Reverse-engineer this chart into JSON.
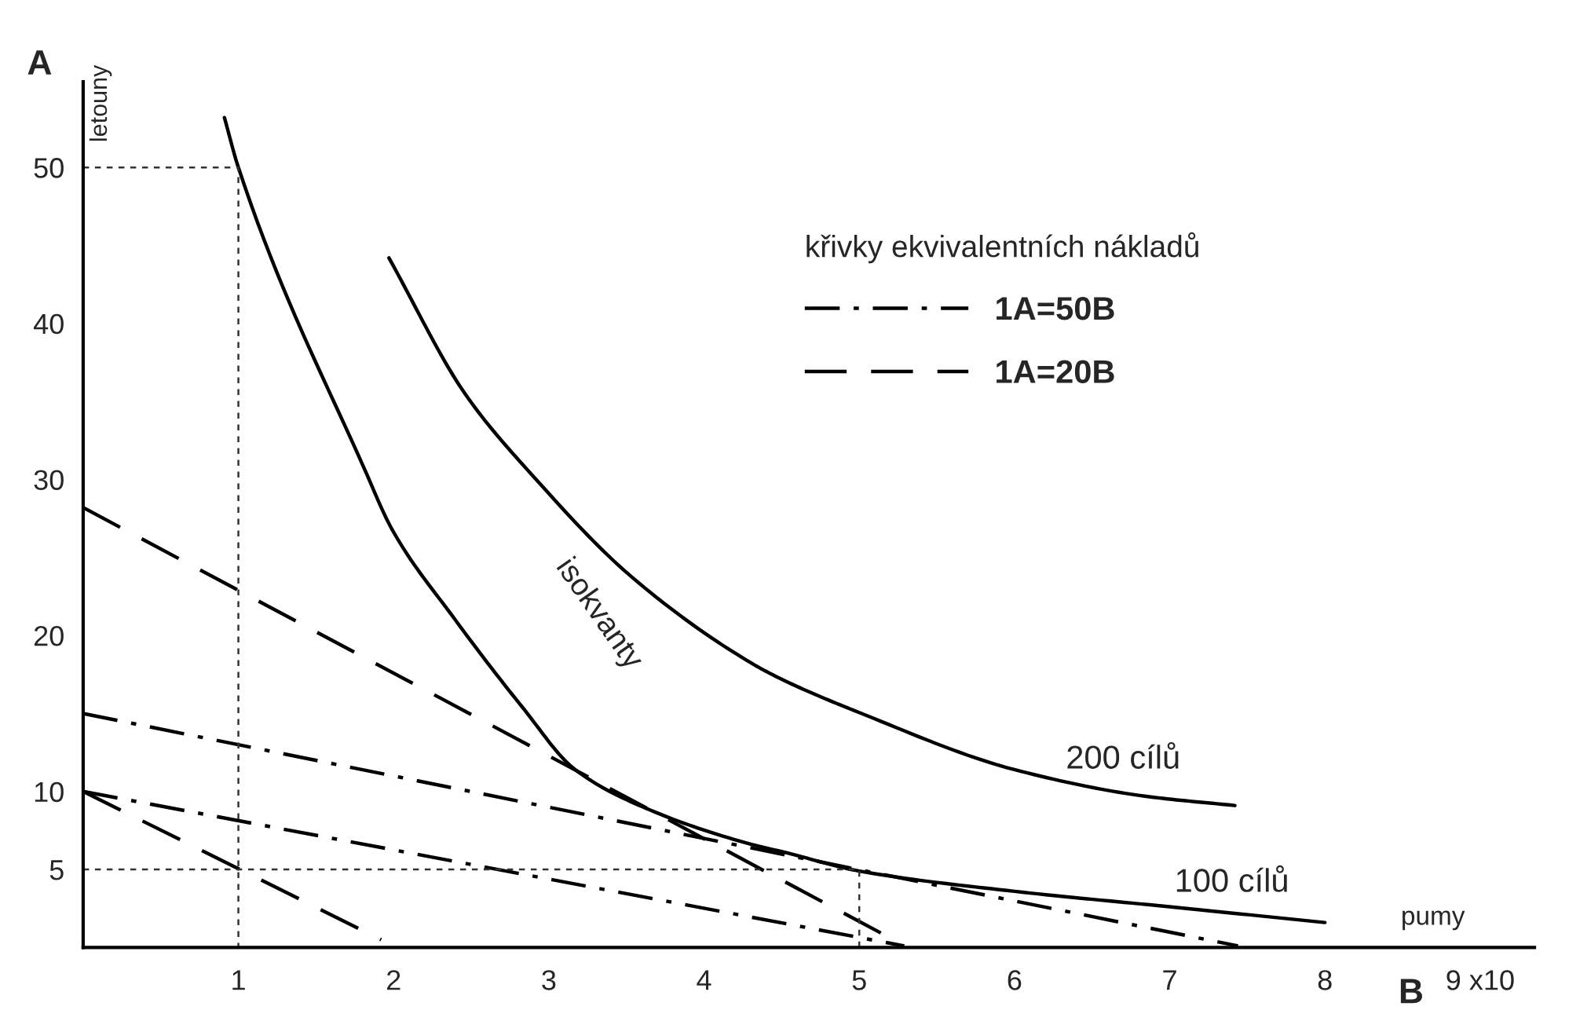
{
  "chart_data": {
    "type": "line",
    "xlabel": "B",
    "ylabel": "A",
    "legend_title": "křivky ekvivalentních nákladů",
    "xlim": [
      0,
      9.35
    ],
    "ylim": [
      0,
      55.5
    ],
    "xticks": [
      1,
      2,
      3,
      4,
      5,
      6,
      7,
      8,
      {
        "value": 9,
        "label": "9 x10"
      }
    ],
    "yticks": [
      5,
      10,
      20,
      30,
      40,
      50
    ],
    "grid": false,
    "legend": "top right",
    "marker": "none",
    "series": [
      {
        "color": "#000000",
        "line_style": "solid",
        "x": [
          0.91,
          1,
          1.82,
          1.99,
          2.39,
          2.83,
          3.17,
          3.68,
          4.31,
          4.52,
          5.0,
          6.0,
          7.01,
          8.0
        ],
        "values": [
          53.2,
          50,
          30.5,
          26.8,
          21.1,
          15.4,
          11.4,
          8.7,
          6.6,
          6.1,
          4.9,
          3.6,
          2.6,
          1.6
        ]
      },
      {
        "color": "#000000",
        "line_style": "solid",
        "x": [
          1.97,
          2.46,
          2.9,
          3.54,
          4.31,
          4.52,
          4.99,
          6.0,
          6.84,
          7.42
        ],
        "values": [
          44.2,
          35.5,
          30.2,
          23.7,
          18.2,
          17.1,
          15.1,
          11.4,
          9.7,
          9.1
        ]
      },
      {
        "name": "1A=50B",
        "color": "#000000",
        "line_style": "dashdot",
        "x": [
          0,
          7.44
        ],
        "values": [
          15.0,
          0.1
        ]
      },
      {
        "color": "#000000",
        "line_style": "dashdot",
        "x": [
          0,
          5.29
        ],
        "values": [
          10.0,
          0.1
        ]
      },
      {
        "name": "1A=20B",
        "color": "#000000",
        "line_style": "dashed",
        "x": [
          0,
          5.22
        ],
        "values": [
          28.2,
          0.5
        ]
      },
      {
        "color": "#000000",
        "line_style": "dashed",
        "x": [
          0,
          1.92
        ],
        "values": [
          10.0,
          0.5
        ]
      },
      {
        "color": "#333333",
        "line_style": "dotted",
        "x": [
          0,
          1,
          1
        ],
        "values": [
          50,
          50,
          0
        ]
      },
      {
        "color": "#333333",
        "line_style": "dotted",
        "x": [
          0,
          5,
          5
        ],
        "values": [
          5,
          5,
          0
        ]
      }
    ],
    "annotations": [
      "isokvanty",
      {
        "text": "200 cílů",
        "x": 6.7,
        "y": 10.2
      },
      {
        "text": "100 cílů",
        "x": 7.4,
        "y": 2.3
      },
      "letouny",
      "pumy"
    ]
  }
}
